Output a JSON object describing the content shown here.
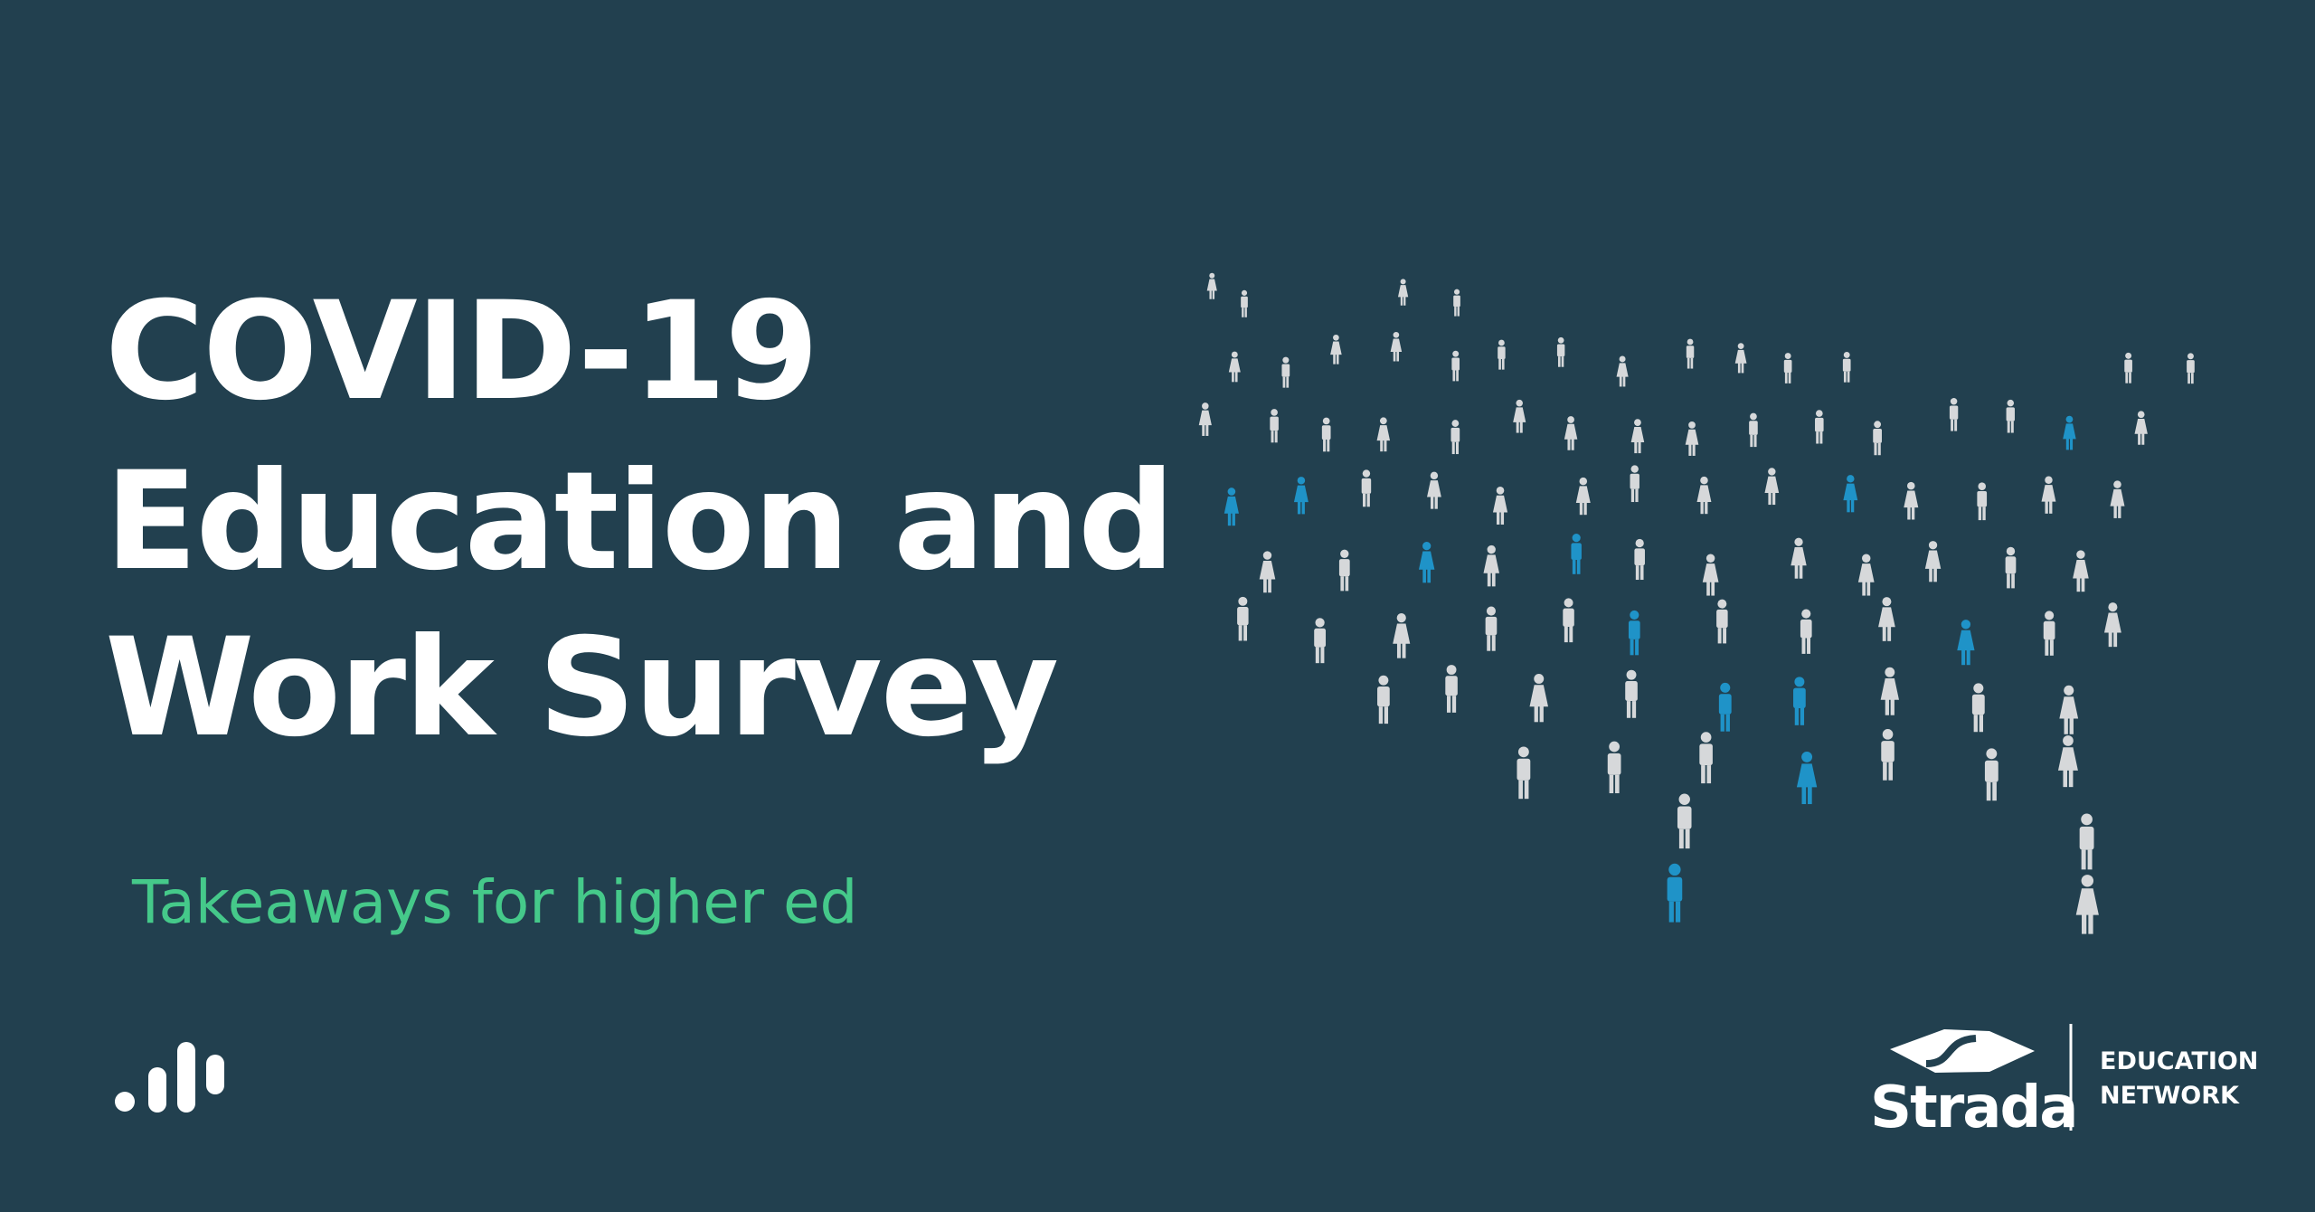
{
  "title": {
    "lines": [
      "COVID-19",
      "Education and",
      "Work Survey"
    ]
  },
  "subtitle": "Takeaways for higher ed",
  "logo": {
    "name": "Strada",
    "lines": [
      "EDUCATION",
      "NETWORK"
    ]
  }
}
